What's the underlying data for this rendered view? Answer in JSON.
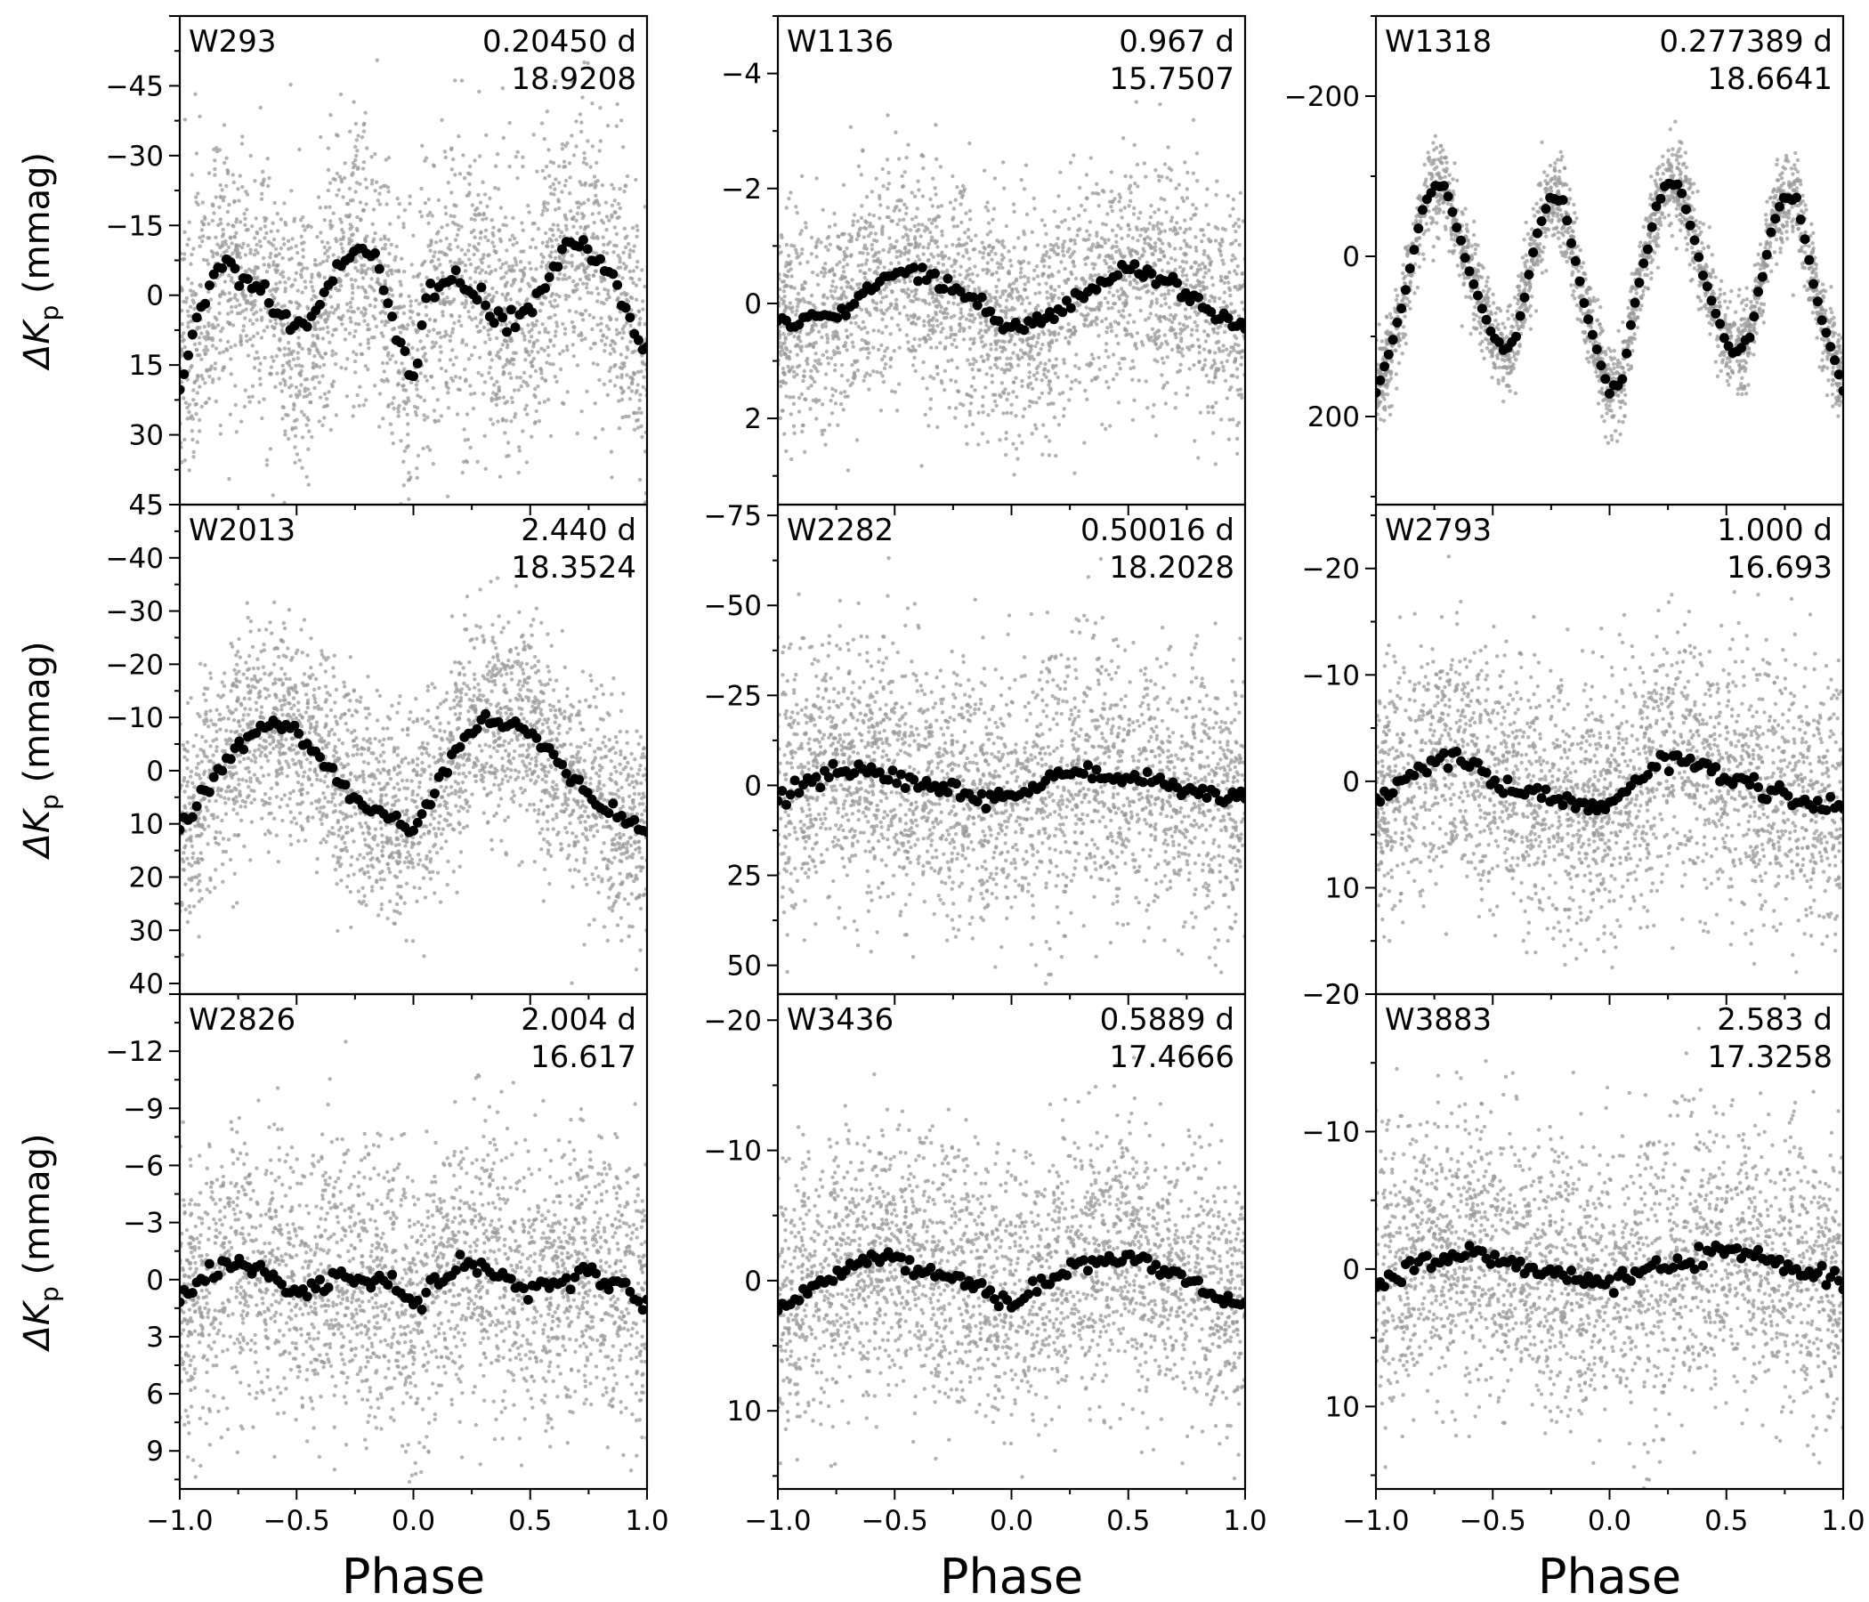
{
  "figure": {
    "xlabel": "Phase",
    "ylabel_main": "ΔK",
    "ylabel_sub": "p",
    "ylabel_unit": "(mmag)"
  },
  "chart_data": [
    {
      "type": "scatter",
      "id": "W293",
      "label": "W293",
      "period": "0.20450 d",
      "magnitude": "18.9208",
      "xlim": [
        -1.0,
        1.0
      ],
      "ylim": [
        45,
        -60
      ],
      "yticks": [
        -45,
        -30,
        -15,
        0,
        15,
        30,
        45
      ],
      "yticklabels": [
        "−45",
        "−30",
        "−15",
        "0",
        "15",
        "30",
        "45"
      ],
      "ylabel": "ΔKp (mmag)",
      "xlabel": "",
      "xticklabels": [],
      "inverted_y": true,
      "noise_sd": 15,
      "binned": {
        "x": [
          -1.0,
          -0.95,
          -0.9,
          -0.85,
          -0.8,
          -0.75,
          -0.7,
          -0.65,
          -0.6,
          -0.55,
          -0.5,
          -0.45,
          -0.4,
          -0.35,
          -0.3,
          -0.25,
          -0.2,
          -0.15,
          -0.1,
          -0.05,
          0.0,
          0.05,
          0.1,
          0.15,
          0.2,
          0.25,
          0.3,
          0.35,
          0.4,
          0.45,
          0.5,
          0.55,
          0.6,
          0.65,
          0.7,
          0.75,
          0.8,
          0.85,
          0.9,
          0.95,
          1.0
        ],
        "y": [
          19,
          9,
          2,
          -3,
          -7,
          -5,
          -2,
          -1,
          2,
          5,
          6,
          5,
          2,
          -3,
          -8,
          -10,
          -9,
          -5,
          3,
          12,
          19,
          2,
          -1,
          -4,
          -3,
          -1,
          1,
          4,
          6,
          5,
          3,
          -1,
          -6,
          -10,
          -12,
          -10,
          -7,
          -4,
          2,
          9,
          13
        ]
      }
    },
    {
      "type": "scatter",
      "id": "W1136",
      "label": "W1136",
      "period": "0.967 d",
      "magnitude": "15.7507",
      "xlim": [
        -1.0,
        1.0
      ],
      "ylim": [
        3.5,
        -5.0
      ],
      "yticks": [
        -4,
        -2,
        0,
        2
      ],
      "yticklabels": [
        "−4",
        "−2",
        "0",
        "2"
      ],
      "ylabel": "",
      "xlabel": "",
      "xticklabels": [],
      "inverted_y": true,
      "noise_sd": 1.0,
      "binned": {
        "x": [
          -1.0,
          -0.9,
          -0.8,
          -0.7,
          -0.6,
          -0.5,
          -0.4,
          -0.3,
          -0.2,
          -0.1,
          0.0,
          0.1,
          0.2,
          0.3,
          0.4,
          0.5,
          0.6,
          0.7,
          0.8,
          0.9,
          1.0
        ],
        "y": [
          0.35,
          0.35,
          0.25,
          0.1,
          -0.3,
          -0.55,
          -0.5,
          -0.35,
          -0.2,
          0.1,
          0.45,
          0.3,
          0.15,
          -0.1,
          -0.4,
          -0.6,
          -0.5,
          -0.3,
          -0.05,
          0.25,
          0.4
        ]
      }
    },
    {
      "type": "scatter",
      "id": "W1318",
      "label": "W1318",
      "period": "0.277389 d",
      "magnitude": "18.6641",
      "xlim": [
        -1.0,
        1.0
      ],
      "ylim": [
        310,
        -300
      ],
      "yticks": [
        -200,
        0,
        200
      ],
      "yticklabels": [
        "−200",
        "0",
        "200"
      ],
      "ylabel": "",
      "xlabel": "",
      "xticklabels": [],
      "inverted_y": true,
      "noise_sd": 28,
      "binned": {
        "x": [
          -1.0,
          -0.9,
          -0.8,
          -0.75,
          -0.7,
          -0.6,
          -0.5,
          -0.45,
          -0.4,
          -0.3,
          -0.25,
          -0.2,
          -0.1,
          0.0,
          -0.05,
          0.05,
          0.1,
          0.2,
          0.25,
          0.3,
          0.4,
          0.5,
          0.55,
          0.6,
          0.7,
          0.75,
          0.8,
          0.9,
          1.0
        ],
        "y": [
          170,
          80,
          -60,
          -90,
          -85,
          20,
          100,
          120,
          100,
          -40,
          -75,
          -70,
          70,
          170,
          160,
          160,
          70,
          -60,
          -90,
          -90,
          20,
          110,
          120,
          100,
          -40,
          -75,
          -70,
          70,
          165
        ]
      }
    },
    {
      "type": "scatter",
      "id": "W2013",
      "label": "W2013",
      "period": "2.440 d",
      "magnitude": "18.3524",
      "xlim": [
        -1.0,
        1.0
      ],
      "ylim": [
        42,
        -50
      ],
      "yticks": [
        -40,
        -30,
        -20,
        -10,
        0,
        10,
        20,
        30,
        40
      ],
      "yticklabels": [
        "−40",
        "−30",
        "−20",
        "−10",
        "0",
        "10",
        "20",
        "30",
        "40"
      ],
      "ylabel": "ΔKp (mmag)",
      "xlabel": "",
      "xticklabels": [],
      "inverted_y": true,
      "noise_sd": 10,
      "binned": {
        "x": [
          -1.0,
          -0.9,
          -0.8,
          -0.7,
          -0.6,
          -0.5,
          -0.4,
          -0.3,
          -0.2,
          -0.1,
          0.0,
          0.1,
          0.2,
          0.3,
          0.4,
          0.5,
          0.6,
          0.7,
          0.8,
          0.9,
          1.0
        ],
        "y": [
          11,
          5,
          -2,
          -7,
          -9,
          -7,
          -3,
          3,
          7,
          9,
          11,
          3,
          -5,
          -9,
          -9,
          -7,
          -3,
          3,
          7,
          9,
          11
        ]
      }
    },
    {
      "type": "scatter",
      "id": "W2282",
      "label": "W2282",
      "period": "0.50016 d",
      "magnitude": "18.2028",
      "xlim": [
        -1.0,
        1.0
      ],
      "ylim": [
        58,
        -78
      ],
      "yticks": [
        -75,
        -50,
        -25,
        0,
        25,
        50
      ],
      "yticklabels": [
        "−75",
        "−50",
        "−25",
        "0",
        "25",
        "50"
      ],
      "ylabel": "",
      "xlabel": "",
      "xticklabels": [],
      "inverted_y": true,
      "noise_sd": 18,
      "binned": {
        "x": [
          -1.0,
          -0.9,
          -0.8,
          -0.7,
          -0.6,
          -0.5,
          -0.4,
          -0.3,
          -0.2,
          -0.1,
          0.0,
          0.1,
          0.2,
          0.3,
          0.4,
          0.5,
          0.6,
          0.7,
          0.8,
          0.9,
          1.0
        ],
        "y": [
          4,
          1,
          -3,
          -4,
          -3,
          -2,
          -1,
          0,
          2,
          3,
          4,
          0,
          -3,
          -4,
          -3,
          -2,
          -1,
          0,
          2,
          3,
          4
        ]
      }
    },
    {
      "type": "scatter",
      "id": "W2793",
      "label": "W2793",
      "period": "1.000 d",
      "magnitude": "16.693",
      "xlim": [
        -1.0,
        1.0
      ],
      "ylim": [
        20,
        -26
      ],
      "yticks": [
        -20,
        -10,
        0,
        10,
        20
      ],
      "yticklabels": [
        "−20",
        "−10",
        "0",
        "10",
        "20"
      ],
      "ylabel": "",
      "xlabel": "",
      "xticklabels": [],
      "inverted_y": true,
      "noise_sd": 6,
      "binned": {
        "x": [
          -1.0,
          -0.9,
          -0.8,
          -0.7,
          -0.6,
          -0.5,
          -0.4,
          -0.3,
          -0.2,
          -0.1,
          0.0,
          0.1,
          0.2,
          0.3,
          0.4,
          0.5,
          0.6,
          0.7,
          0.8,
          0.9,
          1.0
        ],
        "y": [
          2,
          0,
          -1.5,
          -2.5,
          -1.5,
          0,
          0.5,
          1,
          1.5,
          2,
          2.5,
          0,
          -1.5,
          -2.5,
          -1.5,
          -0.5,
          0.5,
          1,
          1.5,
          2,
          2.5
        ]
      }
    },
    {
      "type": "scatter",
      "id": "W2826",
      "label": "W2826",
      "period": "2.004 d",
      "magnitude": "16.617",
      "xlim": [
        -1.0,
        1.0
      ],
      "ylim": [
        11,
        -15
      ],
      "yticks": [
        -12,
        -9,
        -6,
        -3,
        0,
        3,
        6,
        9
      ],
      "yticklabels": [
        "−12",
        "−9",
        "−6",
        "−3",
        "0",
        "3",
        "6",
        "9"
      ],
      "ylabel": "ΔKp (mmag)",
      "xlabel": "Phase",
      "xticklabels": [
        "−1.0",
        "−0.5",
        "0.0",
        "0.5",
        "1.0"
      ],
      "inverted_y": true,
      "noise_sd": 3.6,
      "binned": {
        "x": [
          -1.0,
          -0.9,
          -0.8,
          -0.7,
          -0.6,
          -0.5,
          -0.4,
          -0.3,
          -0.2,
          -0.1,
          0.0,
          0.1,
          0.2,
          0.3,
          0.4,
          0.5,
          0.6,
          0.7,
          0.8,
          0.9,
          1.0
        ],
        "y": [
          1.2,
          0,
          -0.8,
          -0.6,
          0,
          0.5,
          0.3,
          -0.3,
          0,
          0.2,
          1.5,
          0,
          -0.8,
          -0.6,
          0,
          0.5,
          0.3,
          -0.3,
          0,
          0.2,
          1.5
        ]
      }
    },
    {
      "type": "scatter",
      "id": "W3436",
      "label": "W3436",
      "period": "0.5889 d",
      "magnitude": "17.4666",
      "xlim": [
        -1.0,
        1.0
      ],
      "ylim": [
        16,
        -22
      ],
      "yticks": [
        -20,
        -10,
        0,
        10
      ],
      "yticklabels": [
        "−20",
        "−10",
        "0",
        "10"
      ],
      "ylabel": "",
      "xlabel": "Phase",
      "xticklabels": [
        "−1.0",
        "−0.5",
        "0.0",
        "0.5",
        "1.0"
      ],
      "inverted_y": true,
      "noise_sd": 5,
      "binned": {
        "x": [
          -1.0,
          -0.9,
          -0.8,
          -0.7,
          -0.6,
          -0.5,
          -0.4,
          -0.3,
          -0.2,
          -0.1,
          0.0,
          0.1,
          0.2,
          0.3,
          0.4,
          0.5,
          0.6,
          0.7,
          0.8,
          0.9,
          1.0
        ],
        "y": [
          2,
          1,
          0,
          -1,
          -1.5,
          -2,
          -1,
          -0.5,
          0,
          1,
          2,
          0.5,
          -0.5,
          -1,
          -1.5,
          -2,
          -1,
          -0.5,
          0.5,
          1,
          2
        ]
      }
    },
    {
      "type": "scatter",
      "id": "W3883",
      "label": "W3883",
      "period": "2.583 d",
      "magnitude": "17.3258",
      "xlim": [
        -1.0,
        1.0
      ],
      "ylim": [
        16,
        -20
      ],
      "yticks": [
        -20,
        -10,
        0,
        10
      ],
      "yticklabels": [
        "−20",
        "−10",
        "0",
        "10"
      ],
      "ylabel": "",
      "xlabel": "Phase",
      "xticklabels": [
        "−1.0",
        "−0.5",
        "0.0",
        "0.5",
        "1.0"
      ],
      "inverted_y": true,
      "noise_sd": 5,
      "binned": {
        "x": [
          -1.0,
          -0.9,
          -0.8,
          -0.7,
          -0.6,
          -0.5,
          -0.4,
          -0.3,
          -0.2,
          -0.1,
          0.0,
          0.1,
          0.2,
          0.3,
          0.4,
          0.5,
          0.6,
          0.7,
          0.8,
          0.9,
          1.0
        ],
        "y": [
          1,
          0.5,
          -0.5,
          -1,
          -1.5,
          -1,
          -0.5,
          0,
          0.5,
          1,
          1,
          0.5,
          0,
          -0.5,
          -1,
          -1.5,
          -1,
          -0.5,
          0,
          0.5,
          1
        ]
      }
    }
  ],
  "style": {
    "raw_point_color": "#9a9a9a",
    "binned_point_color": "#000000",
    "axis_color": "#000000",
    "background": "#ffffff"
  }
}
